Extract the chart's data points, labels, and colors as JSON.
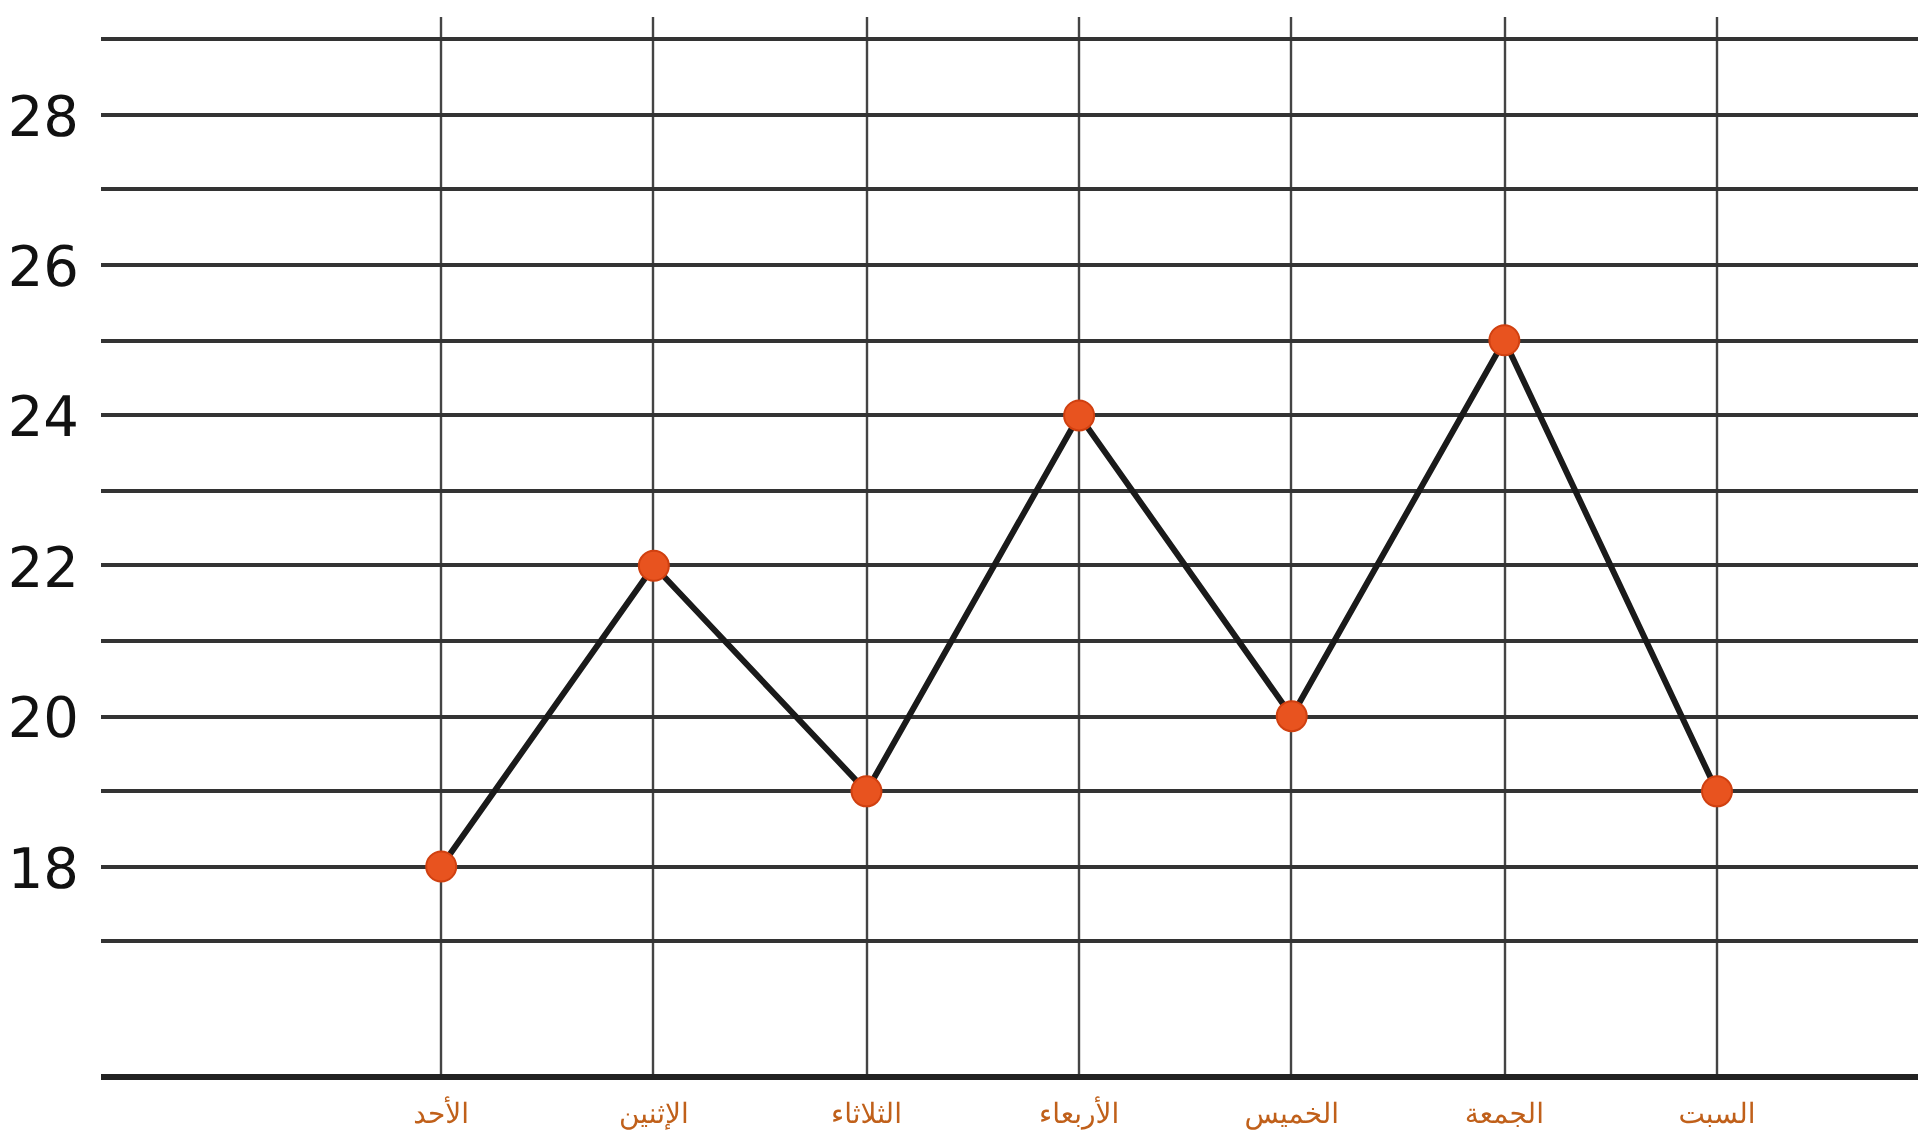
{
  "chart_data": {
    "type": "line",
    "categories": [
      "الأحد",
      "الإثنين",
      "الثلاثاء",
      "الأربعاء",
      "الخميس",
      "الجمعة",
      "السبت"
    ],
    "series": [
      {
        "color": "#1a1a1a",
        "values": [
          18,
          22,
          19,
          24,
          20,
          25,
          19
        ]
      }
    ],
    "marker": "circle",
    "line_style": "solid",
    "grid": true,
    "ylim": [
      15.2,
      29.3
    ],
    "yticks": [
      {
        "value": 17,
        "label": null
      },
      18,
      {
        "value": 19,
        "label": null
      },
      20,
      {
        "value": 21,
        "label": null
      },
      22,
      {
        "value": 23,
        "label": null
      },
      24,
      {
        "value": 25,
        "label": null
      },
      26,
      {
        "value": 27,
        "label": null
      },
      28,
      {
        "value": 29,
        "label": null
      }
    ]
  }
}
